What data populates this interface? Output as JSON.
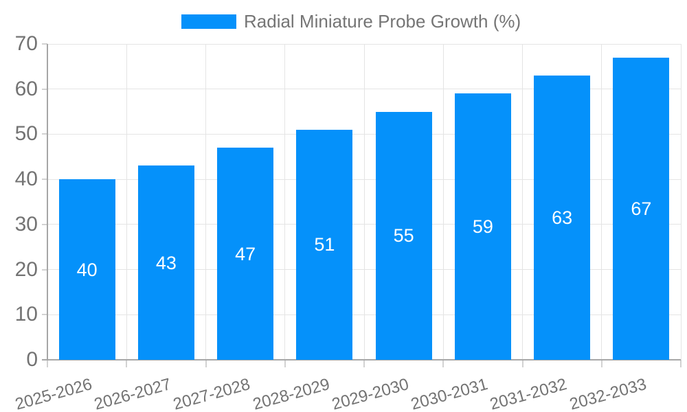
{
  "chart_data": {
    "type": "bar",
    "title": "",
    "legend": [
      "Radial Miniature Probe Growth (%)"
    ],
    "legend_position": "top-center",
    "categories": [
      "2025-2026",
      "2026-2027",
      "2027-2028",
      "2028-2029",
      "2029-2030",
      "2030-2031",
      "2031-2032",
      "2032-2033"
    ],
    "values": [
      40,
      43,
      47,
      51,
      55,
      59,
      63,
      67
    ],
    "value_labels_shown": true,
    "xlabel": "",
    "ylabel": "",
    "ylim": [
      0,
      70
    ],
    "yticks": [
      0,
      10,
      20,
      30,
      40,
      50,
      60,
      70
    ],
    "grid": true,
    "colors": {
      "bar": "#0591fa",
      "value_label": "#ffffff",
      "grid_line": "#e4e4e4",
      "axis_line": "#a6a6a6",
      "tick_mark": "#d2d2d2",
      "tick_label": "#737373",
      "legend_text": "#757575",
      "background": "#ffffff"
    }
  }
}
